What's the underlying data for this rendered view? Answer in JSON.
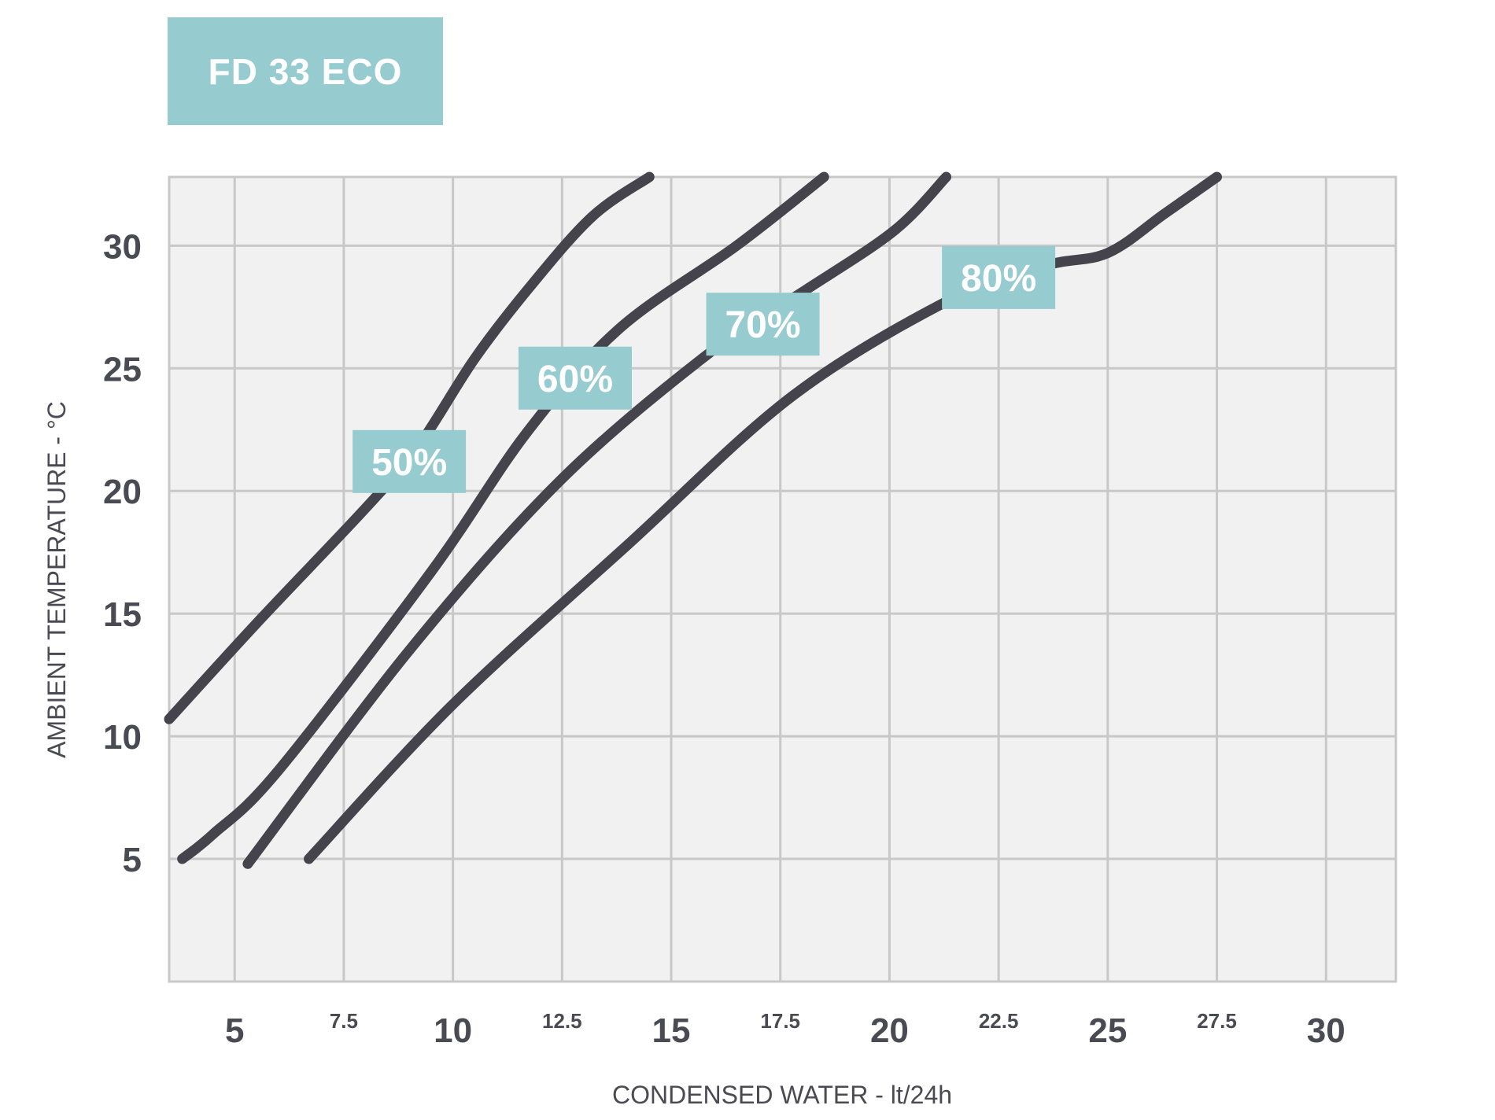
{
  "chart_data": {
    "type": "line",
    "title": "FD 33 ECO",
    "xlabel": "CONDENSED WATER - lt/24h",
    "ylabel": "AMBIENT TEMPERATURE - °C",
    "xlim": [
      3.5,
      31.6
    ],
    "ylim": [
      0,
      32.8
    ],
    "x_ticks": [
      {
        "value": 5,
        "label": "5",
        "major": true
      },
      {
        "value": 7.5,
        "label": "7.5",
        "major": false
      },
      {
        "value": 10,
        "label": "10",
        "major": true
      },
      {
        "value": 12.5,
        "label": "12.5",
        "major": false
      },
      {
        "value": 15,
        "label": "15",
        "major": true
      },
      {
        "value": 17.5,
        "label": "17.5",
        "major": false
      },
      {
        "value": 20,
        "label": "20",
        "major": true
      },
      {
        "value": 22.5,
        "label": "22.5",
        "major": false
      },
      {
        "value": 25,
        "label": "25",
        "major": true
      },
      {
        "value": 27.5,
        "label": "27.5",
        "major": false
      },
      {
        "value": 30,
        "label": "30",
        "major": true
      }
    ],
    "y_ticks": [
      {
        "value": 5,
        "label": "5"
      },
      {
        "value": 10,
        "label": "10"
      },
      {
        "value": 15,
        "label": "15"
      },
      {
        "value": 20,
        "label": "20"
      },
      {
        "value": 25,
        "label": "25"
      },
      {
        "value": 30,
        "label": "30"
      }
    ],
    "grid": true,
    "line_color": "#45444d",
    "label_box_color": "#96cbd0",
    "plot_background": "#f1f1f1",
    "grid_color": "#c8c8c8",
    "series": [
      {
        "name": "50%",
        "x": [
          3.5,
          5.5,
          8.0,
          9.2,
          10.5,
          11.8,
          13.2,
          14.5
        ],
        "y": [
          10.7,
          14.6,
          19.3,
          21.8,
          25.4,
          28.4,
          31.2,
          32.8
        ],
        "label_at": [
          9.0,
          21.2
        ]
      },
      {
        "name": "60%",
        "x": [
          3.8,
          4.5,
          6.0,
          9.5,
          11.7,
          13.8,
          16.5,
          18.5
        ],
        "y": [
          5.0,
          6.0,
          8.6,
          16.7,
          22.4,
          26.6,
          30.0,
          32.8
        ],
        "label_at": [
          12.8,
          24.6
        ]
      },
      {
        "name": "70%",
        "x": [
          5.3,
          9.0,
          12.5,
          16.0,
          18.0,
          20.1,
          21.3
        ],
        "y": [
          4.8,
          13.5,
          20.5,
          25.8,
          28.1,
          30.6,
          32.8
        ],
        "label_at": [
          17.1,
          26.8
        ]
      },
      {
        "name": "80%",
        "x": [
          6.7,
          10.0,
          14.0,
          17.8,
          21.5,
          23.6,
          25.0,
          26.3,
          27.5
        ],
        "y": [
          5.0,
          11.3,
          17.8,
          23.9,
          27.9,
          29.2,
          29.7,
          31.3,
          32.8
        ],
        "label_at": [
          22.5,
          28.7
        ]
      }
    ]
  }
}
